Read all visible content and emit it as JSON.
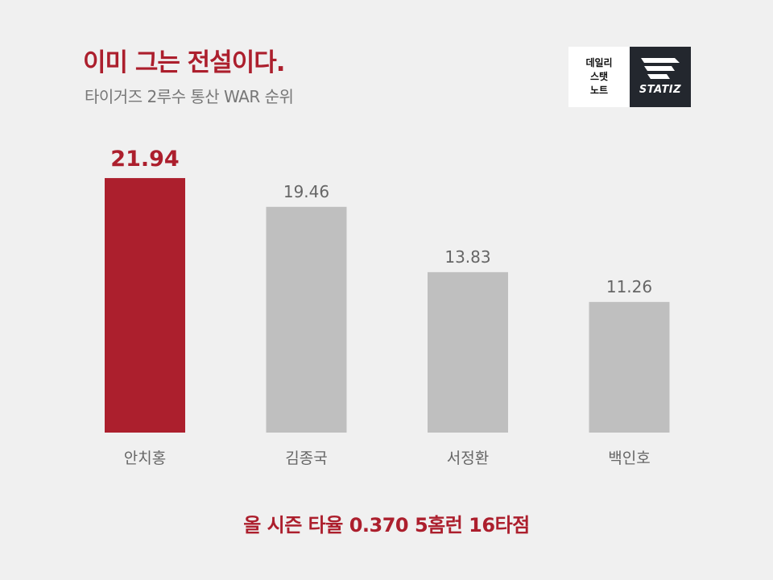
{
  "header": {
    "title": "이미 그는 전설이다.",
    "subtitle": "타이거즈 2루수 통산 WAR 순위"
  },
  "logos": {
    "daily_lines": [
      "데일리",
      "스탯",
      "노트"
    ],
    "statiz_label": "STATIZ",
    "statiz_mark": "statiz-logo-icon"
  },
  "colors": {
    "highlight": "#ac1f2d",
    "default_bar": "#bfbfbf",
    "background": "#f0f0f0",
    "label_gray": "#666666"
  },
  "chart_data": {
    "type": "bar",
    "categories": [
      "안치홍",
      "김종국",
      "서정환",
      "백인호"
    ],
    "values": [
      21.94,
      19.46,
      13.83,
      11.26
    ],
    "data_labels": [
      "21.94",
      "19.46",
      "13.83",
      "11.26"
    ],
    "highlight_index": 0,
    "ylim": [
      0,
      25
    ],
    "grid": false,
    "title": "이미 그는 전설이다.",
    "subtitle": "타이거즈 2루수 통산 WAR 순위"
  },
  "footer": {
    "text": "올 시즌 타율 0.370 5홈런 16타점"
  }
}
